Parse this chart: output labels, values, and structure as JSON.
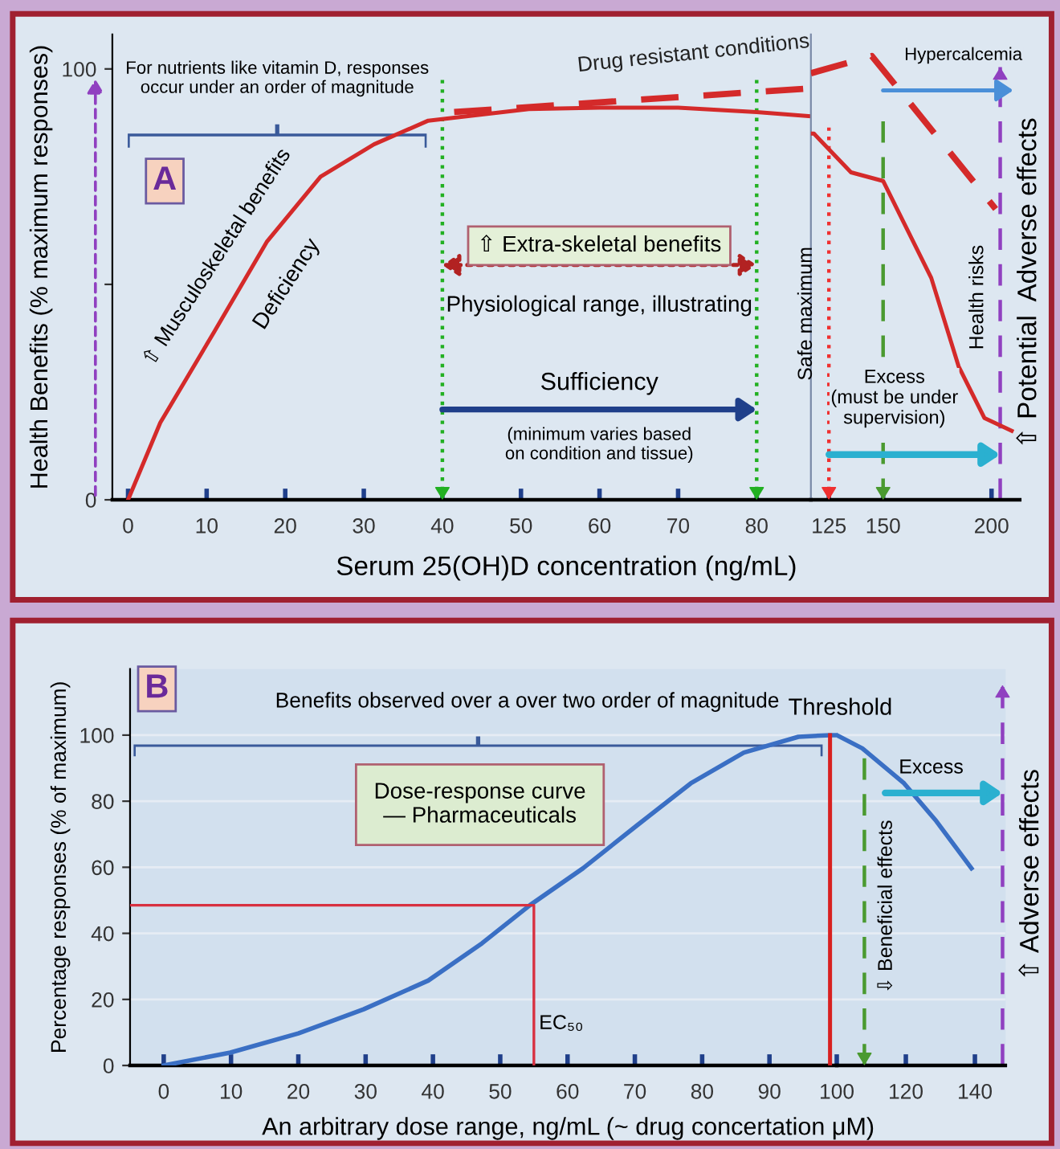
{
  "chart_data": [
    {
      "type": "line",
      "xlabel": "Serum 25(OH)D concentration (ng/mL)",
      "ylabel": "Health Benefits (% maximum responses)",
      "xlim": [
        -2,
        86.9
      ],
      "ylim": [
        0,
        108
      ],
      "xticks": [
        0,
        10,
        20,
        30,
        40,
        50,
        60,
        70,
        80
      ],
      "yticks": [
        0,
        {
          "value": 50,
          "label": null
        },
        100
      ],
      "grid": false,
      "legend": false,
      "marker": "none",
      "series": [
        {
          "color": "#d42a2a",
          "line_style": "solid",
          "x": [
            0,
            4.1,
            10.9,
            17.7,
            24.5,
            31.3,
            38.2,
            51,
            60,
            70,
            80,
            86.9
          ],
          "values": [
            0,
            17.9,
            38.8,
            60,
            75,
            82.5,
            88,
            90.7,
            91,
            91,
            90,
            89
          ]
        },
        {
          "color": "#d42a2a",
          "line_style": "dashed",
          "x": [
            41.5,
            86.9
          ],
          "values": [
            90,
            95.5
          ]
        }
      ],
      "ref_lines": [
        {
          "axis": "x",
          "value": 40,
          "label": null,
          "color": "#22b022",
          "line_style": "dotted"
        },
        {
          "axis": "x",
          "value": 80,
          "label": null,
          "color": "#22b022",
          "line_style": "dotted"
        }
      ],
      "annotations": [
        "A",
        "For nutrients like vitamin D, responses\noccur under an order of magnitude",
        "⇧ Musculoskeletal benefits",
        "Deficiency",
        "Drug resistant conditions",
        "⇧ Extra-skeletal benefits",
        "Physiological range, illustrating",
        "Sufficiency",
        "(minimum varies based\non condition and tissue)"
      ]
    },
    {
      "type": "line",
      "xlim": [
        116.7,
        213
      ],
      "ylim": [
        0,
        108
      ],
      "xticks": [
        125,
        150,
        200
      ],
      "tick_labels": "x",
      "grid": false,
      "legend": false,
      "marker": "none",
      "series": [
        {
          "color": "#d42a2a",
          "line_style": "solid",
          "x": [
            116.7,
            118.1,
            135.2,
            150,
            172.2,
            184.8,
            196.7,
            209.3
          ],
          "values": [
            85,
            85,
            76,
            74,
            51.5,
            31,
            19,
            16
          ]
        },
        {
          "color": "#d42a2a",
          "line_style": "dashed",
          "x": [
            116.7,
            144.8,
            201.9
          ],
          "values": [
            99,
            103,
            67.5
          ]
        }
      ],
      "ref_lines": [
        {
          "axis": "x",
          "value": 125,
          "label": "Safe maximum",
          "color": "#f03030",
          "line_style": "dotted"
        },
        {
          "axis": "x",
          "value": 150,
          "label": null,
          "color": "#4a9a30",
          "line_style": "dashed"
        },
        {
          "axis": "x",
          "value": 204,
          "label": "⇧ Potential  Adverse effects",
          "color": "#9040c0",
          "line_style": "dashed"
        }
      ],
      "annotations": [
        "Health risks",
        "Excess\n(must be under\nsupervision)",
        "Hypercalcemia"
      ]
    },
    {
      "type": "line",
      "xlabel": "An arbitrary dose range, ng/mL (~ drug concertation μM)",
      "ylabel": "Percentage responses (% of maximum)",
      "xlim": [
        -5,
        100
      ],
      "ylim": [
        0,
        120
      ],
      "xticks": [
        0,
        10,
        20,
        30,
        40,
        50,
        60,
        70,
        80,
        90,
        100
      ],
      "yticks": [
        0,
        20,
        40,
        60,
        80,
        100
      ],
      "grid": "y",
      "legend": false,
      "marker": "none",
      "series": [
        {
          "color": "#3a6fc4",
          "line_style": "solid",
          "x": [
            0,
            9.9,
            20,
            29.7,
            39.3,
            47.3,
            54.4,
            62.3,
            70.4,
            78.3,
            86.2,
            94.3,
            99,
            100
          ],
          "values": [
            0,
            3.9,
            9.7,
            17,
            25.7,
            37,
            48.5,
            59.7,
            72.8,
            85.4,
            94.7,
            99.5,
            100,
            100
          ]
        },
        {
          "color": "#d83040",
          "line_style": "solid",
          "x": [
            -5,
            55,
            55
          ],
          "values": [
            48.5,
            48.5,
            0
          ]
        },
        {
          "color": "#d82020",
          "line_style": "solid",
          "x": [
            99,
            99
          ],
          "values": [
            0,
            100
          ]
        }
      ],
      "annotations": [
        "B",
        "Benefits observed over a over two order of magnitude",
        "Dose-response curve\n— Pharmaceuticals",
        "Threshold",
        "EC₅₀"
      ]
    },
    {
      "type": "line",
      "xlim": [
        100,
        148.8
      ],
      "ylim": [
        0,
        120
      ],
      "xticks": [
        120,
        140
      ],
      "yticks": [
        0,
        20,
        40,
        60,
        80,
        100
      ],
      "tick_labels": "x",
      "grid": "y",
      "legend": false,
      "marker": "none",
      "series": [
        {
          "color": "#3a6fc4",
          "line_style": "solid",
          "x": [
            100,
            107.4,
            119.5,
            128.8,
            139
          ],
          "values": [
            100,
            96,
            85.4,
            74,
            59.7
          ]
        }
      ],
      "ref_lines": [
        {
          "axis": "x",
          "value": 108,
          "label": "⇩ Beneficial effects",
          "color": "#4a9a30",
          "line_style": "dashed"
        },
        {
          "axis": "x",
          "value": 148,
          "label": "⇧ Adverse effects",
          "color": "#9040c0",
          "line_style": "dashed"
        }
      ],
      "annotations": [
        "Excess"
      ]
    }
  ]
}
